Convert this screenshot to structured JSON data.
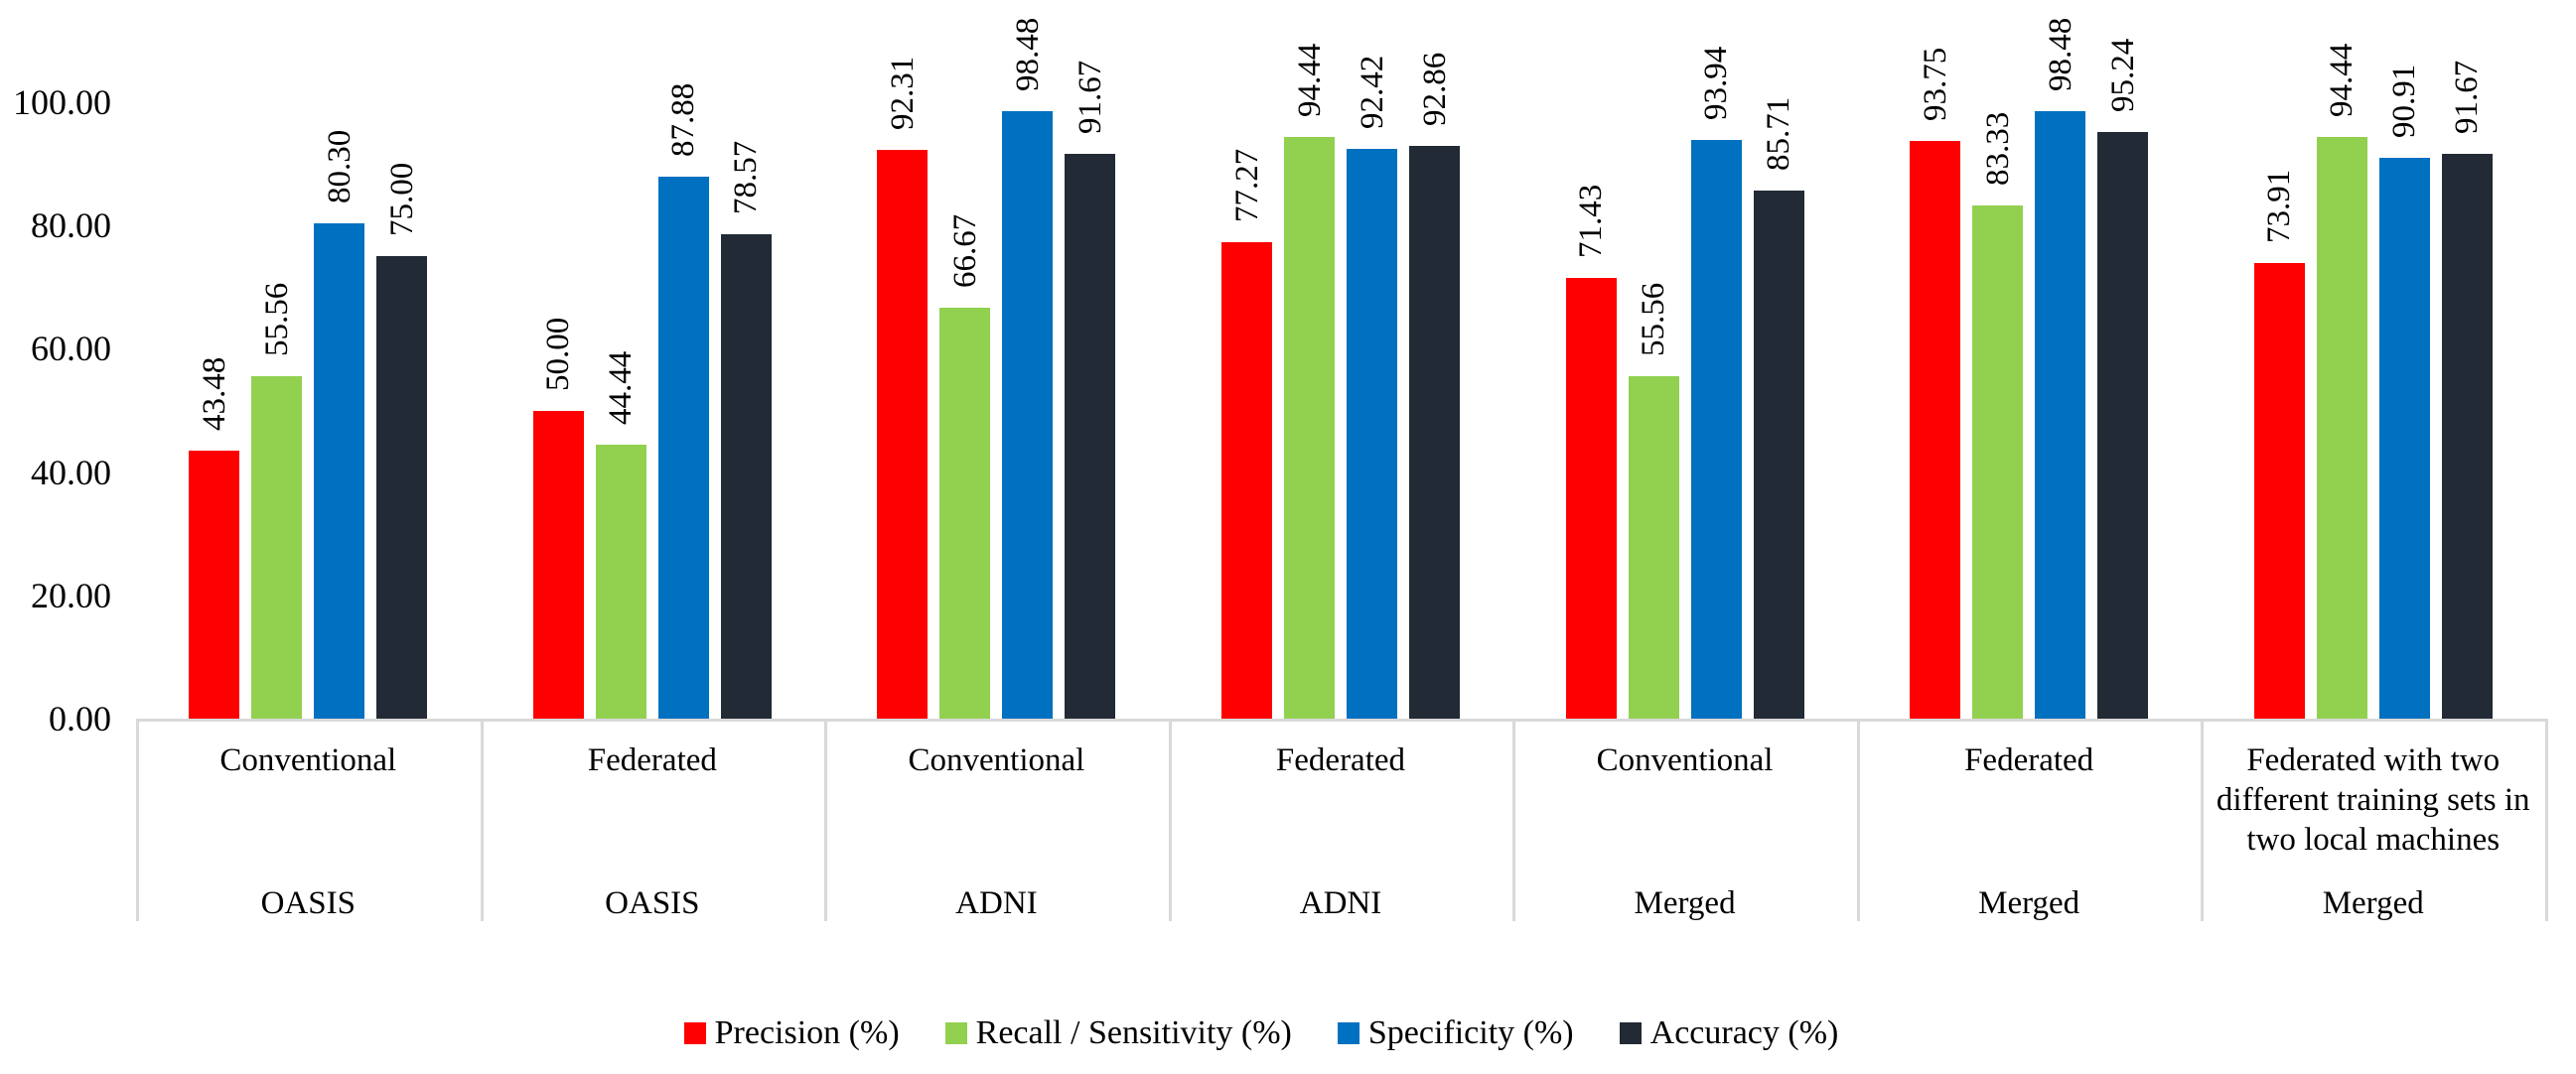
{
  "chart_data": {
    "type": "bar",
    "title": "",
    "categories": [
      {
        "method": "Conventional",
        "dataset": "OASIS"
      },
      {
        "method": "Federated",
        "dataset": "OASIS"
      },
      {
        "method": "Conventional",
        "dataset": "ADNI"
      },
      {
        "method": "Federated",
        "dataset": "ADNI"
      },
      {
        "method": "Conventional",
        "dataset": "Merged"
      },
      {
        "method": "Federated",
        "dataset": "Merged"
      },
      {
        "method": "Federated with two\ndifferent training sets in\ntwo local machines",
        "dataset": "Merged"
      }
    ],
    "series": [
      {
        "name": "Precision (%)",
        "color": "#FF0000",
        "values": [
          43.48,
          50.0,
          92.31,
          77.27,
          71.43,
          93.75,
          73.91
        ]
      },
      {
        "name": "Recall / Sensitivity (%)",
        "color": "#92D050",
        "values": [
          55.56,
          44.44,
          66.67,
          94.44,
          55.56,
          83.33,
          94.44
        ]
      },
      {
        "name": "Specificity (%)",
        "color": "#0070C0",
        "values": [
          80.3,
          87.88,
          98.48,
          92.42,
          93.94,
          98.48,
          90.91
        ]
      },
      {
        "name": "Accuracy (%)",
        "color": "#222A35",
        "values": [
          75.0,
          78.57,
          91.67,
          92.86,
          85.71,
          95.24,
          91.67
        ]
      }
    ],
    "y_axis": {
      "min": 0,
      "max": 100,
      "tick_step": 20,
      "tick_labels": [
        "0.00",
        "20.00",
        "40.00",
        "60.00",
        "80.00",
        "100.00"
      ]
    },
    "data_labels": {
      "visible": true,
      "rotation": -90,
      "decimals": 2
    },
    "legend": {
      "position": "bottom",
      "entries": [
        "Precision (%)",
        "Recall / Sensitivity (%)",
        "Specificity (%)",
        "Accuracy (%)"
      ]
    },
    "grid": false,
    "colors": {
      "axis_line": "#D9D9D9",
      "text": "#000000",
      "background": "#FFFFFF"
    }
  }
}
